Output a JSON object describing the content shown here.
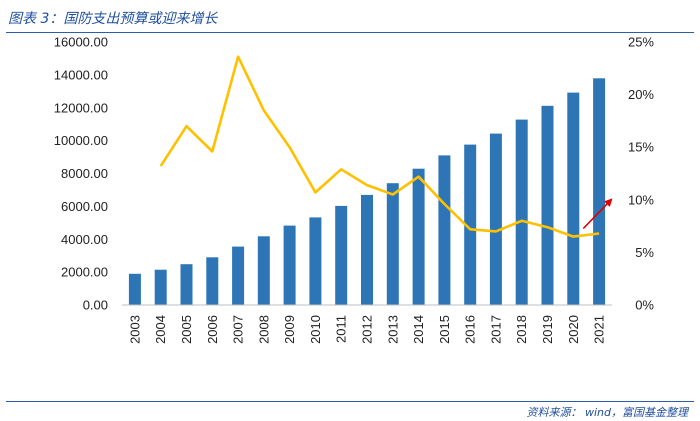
{
  "title": "图表 3：国防支出预算或迎来增长",
  "source": "资料来源： wind，富国基金整理",
  "colors": {
    "bar": "#2e75b6",
    "line": "#ffc000",
    "arrow": "#e00000",
    "rule": "#2e5ea8",
    "title": "#1f4e9e"
  },
  "chart_data": {
    "type": "bar",
    "title": "",
    "xlabel": "",
    "ylabel": "",
    "categories": [
      "2003",
      "2004",
      "2005",
      "2006",
      "2007",
      "2008",
      "2009",
      "2010",
      "2011",
      "2012",
      "2013",
      "2014",
      "2015",
      "2016",
      "2017",
      "2018",
      "2019",
      "2020",
      "2021"
    ],
    "ylim": [
      0,
      16000
    ],
    "y2lim": [
      0,
      25
    ],
    "y_tick_labels": [
      "0.00",
      "2000.00",
      "4000.00",
      "6000.00",
      "8000.00",
      "10000.00",
      "12000.00",
      "14000.00",
      "16000.00"
    ],
    "y2_tick_labels": [
      "0%",
      "5%",
      "10%",
      "15%",
      "20%",
      "25%"
    ],
    "grid": false,
    "legend": "none",
    "series": [
      {
        "type": "bar",
        "axis": "left",
        "values": [
          1900,
          2150,
          2480,
          2900,
          3550,
          4180,
          4830,
          5330,
          6030,
          6700,
          7410,
          8290,
          9100,
          9760,
          10430,
          11280,
          12120,
          12920,
          13790
        ]
      },
      {
        "type": "line",
        "axis": "right",
        "values": [
          null,
          13.2,
          17.0,
          14.6,
          23.6,
          18.5,
          15.0,
          10.7,
          12.9,
          11.4,
          10.5,
          12.2,
          9.6,
          7.2,
          7.0,
          8.0,
          7.4,
          6.5,
          6.8
        ]
      }
    ],
    "annotations": [
      {
        "type": "arrow",
        "color": "red",
        "near": "2020-2021",
        "direction": "up-right"
      }
    ]
  }
}
